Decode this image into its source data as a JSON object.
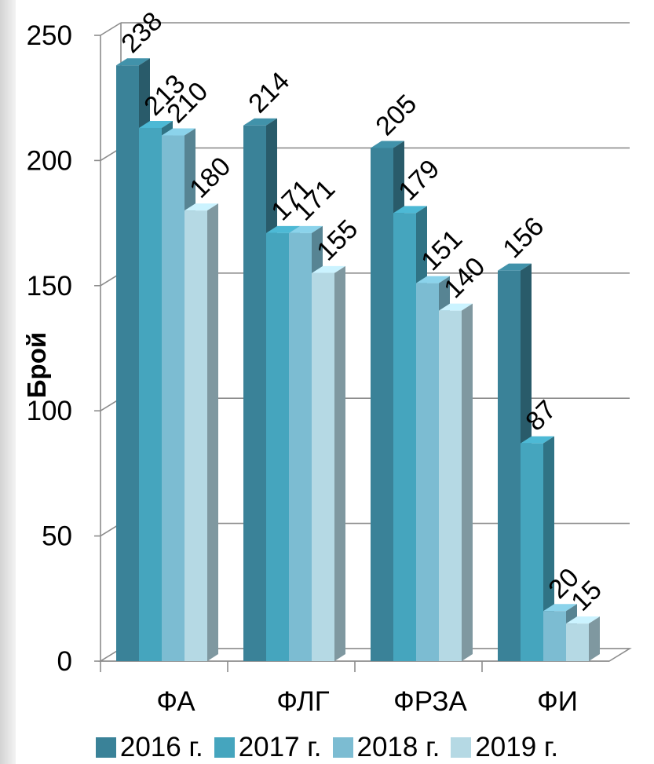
{
  "chart_data": {
    "type": "bar",
    "title": "",
    "xlabel": "",
    "ylabel": "Брой",
    "categories": [
      "ФА",
      "ФЛГ",
      "ФРЗА",
      "ФИ"
    ],
    "series": [
      {
        "name": "2016 г.",
        "color": "#3a8298",
        "values": [
          238,
          214,
          205,
          156
        ]
      },
      {
        "name": "2017 г.",
        "color": "#45a5be",
        "values": [
          213,
          171,
          179,
          87
        ]
      },
      {
        "name": "2018 г.",
        "color": "#7cbcd2",
        "values": [
          210,
          171,
          151,
          20
        ]
      },
      {
        "name": "2019 г.",
        "color": "#b5d9e4",
        "values": [
          180,
          155,
          140,
          15
        ]
      }
    ],
    "ylim": [
      0,
      250
    ],
    "yticks": [
      "0",
      "50",
      "100",
      "150",
      "200",
      "250"
    ],
    "grid": true,
    "legend_position": "bottom",
    "data_labels": true,
    "style": "3d-clustered-column"
  }
}
